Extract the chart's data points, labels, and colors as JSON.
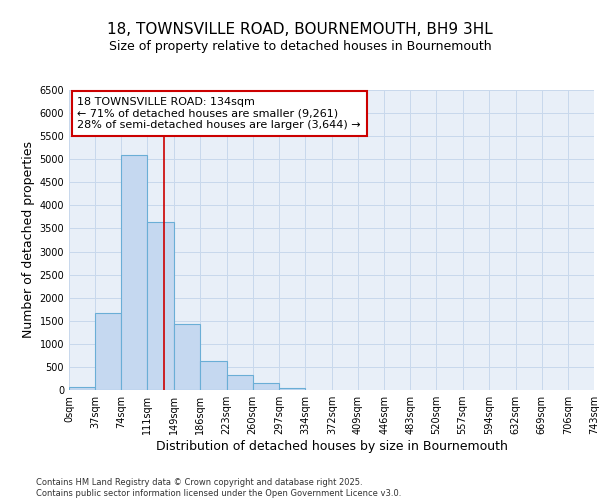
{
  "title_line1": "18, TOWNSVILLE ROAD, BOURNEMOUTH, BH9 3HL",
  "title_line2": "Size of property relative to detached houses in Bournemouth",
  "xlabel": "Distribution of detached houses by size in Bournemouth",
  "ylabel": "Number of detached properties",
  "footer_line1": "Contains HM Land Registry data © Crown copyright and database right 2025.",
  "footer_line2": "Contains public sector information licensed under the Open Government Licence v3.0.",
  "bar_edges": [
    0,
    37,
    74,
    111,
    149,
    186,
    223,
    260,
    297,
    334,
    372,
    409,
    446,
    483,
    520,
    557,
    594,
    632,
    669,
    706,
    743
  ],
  "bar_heights": [
    65,
    1660,
    5100,
    3650,
    1440,
    620,
    320,
    155,
    50,
    0,
    0,
    0,
    0,
    0,
    0,
    0,
    0,
    0,
    0,
    0
  ],
  "bar_color": "#c5d8f0",
  "bar_edge_color": "#6aaed6",
  "grid_color": "#c8d8ec",
  "background_color": "#e8eff8",
  "property_line_x": 134,
  "property_line_color": "#cc0000",
  "annotation_line1": "18 TOWNSVILLE ROAD: 134sqm",
  "annotation_line2": "← 71% of detached houses are smaller (9,261)",
  "annotation_line3": "28% of semi-detached houses are larger (3,644) →",
  "annotation_box_edgecolor": "#cc0000",
  "ylim_max": 6500,
  "yticks": [
    0,
    500,
    1000,
    1500,
    2000,
    2500,
    3000,
    3500,
    4000,
    4500,
    5000,
    5500,
    6000,
    6500
  ],
  "title_fontsize": 11,
  "subtitle_fontsize": 9,
  "axis_label_fontsize": 9,
  "tick_fontsize": 7,
  "footer_fontsize": 6,
  "annotation_fontsize": 8
}
